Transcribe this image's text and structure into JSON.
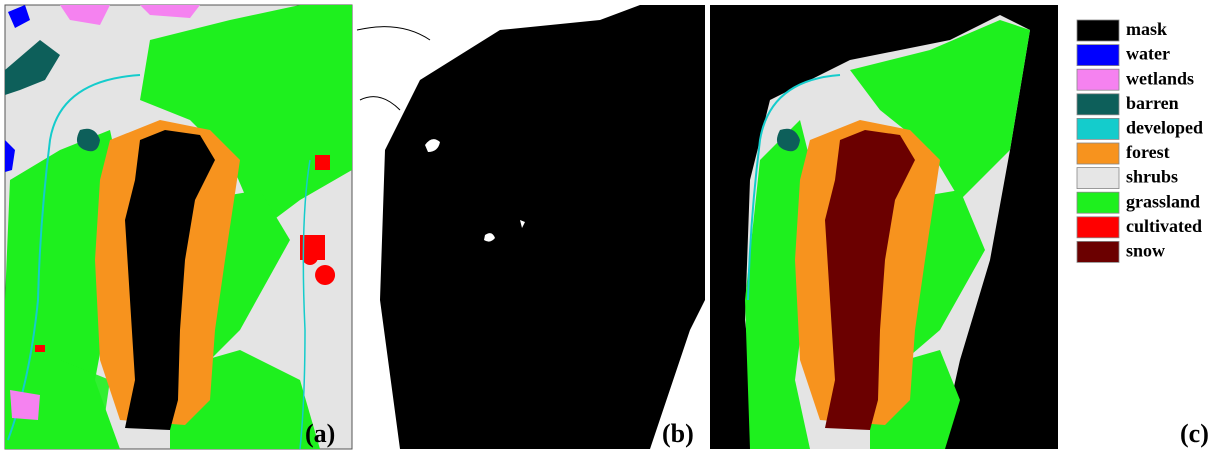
{
  "panels": [
    {
      "label": "(a)"
    },
    {
      "label": "(b)"
    },
    {
      "label": "(c)"
    }
  ],
  "legend": {
    "items": [
      {
        "label": "mask",
        "color": "#000000"
      },
      {
        "label": "water",
        "color": "#0000ff"
      },
      {
        "label": "wetlands",
        "color": "#f582f0"
      },
      {
        "label": "barren",
        "color": "#0d5f5a"
      },
      {
        "label": "developed",
        "color": "#14cccc"
      },
      {
        "label": "forest",
        "color": "#f7931e"
      },
      {
        "label": "shrubs",
        "color": "#e6e6e6"
      },
      {
        "label": "grassland",
        "color": "#1ef01e"
      },
      {
        "label": "cultivated",
        "color": "#ff0000"
      },
      {
        "label": "snow",
        "color": "#6b0000"
      }
    ]
  }
}
